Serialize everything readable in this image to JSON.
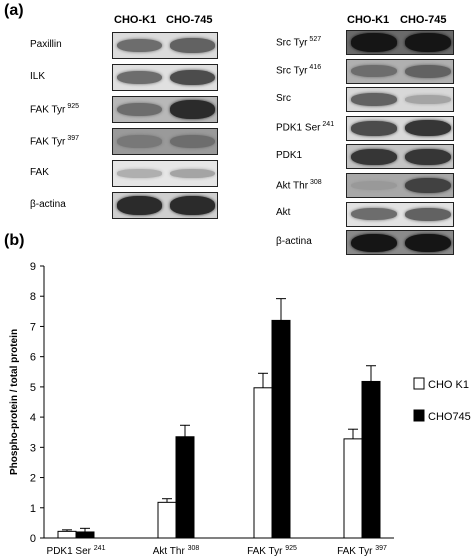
{
  "figure": {
    "panel_a_label": "(a)",
    "panel_b_label": "(b)",
    "lane_headers": [
      "CHO-K1",
      "CHO-745"
    ],
    "left_blots": [
      {
        "name": "Paxillin",
        "sup": "",
        "bands": [
          0.55,
          0.6
        ],
        "bg": "#dcdcdc"
      },
      {
        "name": "ILK",
        "sup": "",
        "bands": [
          0.55,
          0.7
        ],
        "bg": "#e0e0e0"
      },
      {
        "name": "FAK Tyr",
        "sup": "925",
        "bands": [
          0.55,
          0.85
        ],
        "bg": "#b8b8b8"
      },
      {
        "name": "FAK Tyr",
        "sup": "397",
        "bands": [
          0.5,
          0.55
        ],
        "bg": "#9a9a9a"
      },
      {
        "name": "FAK",
        "sup": "",
        "bands": [
          0.25,
          0.3
        ],
        "bg": "#e6e6e6"
      },
      {
        "name": "β-actina",
        "sup": "",
        "bands": [
          0.85,
          0.85
        ],
        "bg": "#cfcfcf"
      }
    ],
    "right_blots": [
      {
        "name": "Src Tyr",
        "sup": "527",
        "bands": [
          0.95,
          0.95
        ],
        "bg": "#6a6a6a"
      },
      {
        "name": "Src Tyr",
        "sup": "416",
        "bands": [
          0.55,
          0.6
        ],
        "bg": "#b0b0b0"
      },
      {
        "name": "Src",
        "sup": "",
        "bands": [
          0.6,
          0.3
        ],
        "bg": "#d8d8d8"
      },
      {
        "name": "PDK1 Ser",
        "sup": "241",
        "bands": [
          0.7,
          0.8
        ],
        "bg": "#dadada"
      },
      {
        "name": "PDK1",
        "sup": "",
        "bands": [
          0.8,
          0.8
        ],
        "bg": "#c4c4c4"
      },
      {
        "name": "Akt Thr",
        "sup": "308",
        "bands": [
          0.35,
          0.75
        ],
        "bg": "#a8a8a8"
      },
      {
        "name": "Akt",
        "sup": "",
        "bands": [
          0.55,
          0.6
        ],
        "bg": "#e2e2e2"
      },
      {
        "name": "β-actina",
        "sup": "",
        "bands": [
          0.95,
          0.95
        ],
        "bg": "#8a8a8a"
      }
    ]
  },
  "chart_data": {
    "type": "bar",
    "ylabel": "Phospho-protein / total protein",
    "ylim": [
      0,
      9
    ],
    "yticks": [
      0,
      1,
      2,
      3,
      4,
      5,
      6,
      7,
      8,
      9
    ],
    "categories": [
      {
        "name": "PDK1 Ser",
        "sup": "241"
      },
      {
        "name": "Akt Thr",
        "sup": "308"
      },
      {
        "name": "FAK Tyr",
        "sup": "925"
      },
      {
        "name": "FAK Tyr",
        "sup": "397"
      }
    ],
    "series": [
      {
        "name": "CHO K1",
        "color": "#ffffff",
        "values": [
          0.22,
          1.18,
          4.97,
          3.28
        ],
        "errors": [
          0.05,
          0.12,
          0.48,
          0.32
        ]
      },
      {
        "name": "CHO745",
        "color": "#000000",
        "values": [
          0.2,
          3.35,
          7.2,
          5.18
        ],
        "errors": [
          0.12,
          0.38,
          0.72,
          0.52
        ]
      }
    ],
    "legend_position": "right",
    "grid": false
  }
}
